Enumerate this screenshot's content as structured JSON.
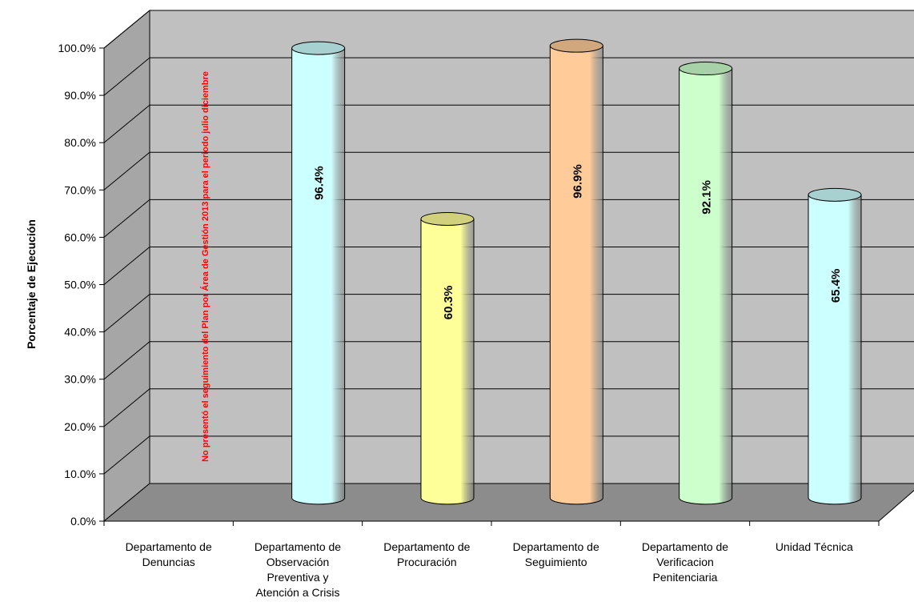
{
  "chart_data": {
    "type": "bar",
    "style": "3d-cylinder",
    "title": "",
    "xlabel": "",
    "ylabel": "Porcentaje de Ejecución",
    "ylim": [
      0,
      100
    ],
    "yticks": [
      "0.0%",
      "10.0%",
      "20.0%",
      "30.0%",
      "40.0%",
      "50.0%",
      "60.0%",
      "70.0%",
      "80.0%",
      "90.0%",
      "100.0%"
    ],
    "grid": true,
    "categories": [
      [
        "Departamento de",
        "Denuncias"
      ],
      [
        "Departamento de",
        "Observación",
        "Preventiva y",
        "Atención a Crisis"
      ],
      [
        "Departamento de",
        "Procuración"
      ],
      [
        "Departamento de",
        "Seguimiento"
      ],
      [
        "Departamento de",
        "Verificacion",
        "Penitenciaria"
      ],
      [
        "Unidad Técnica"
      ]
    ],
    "values": [
      null,
      96.4,
      60.3,
      96.9,
      92.1,
      65.4
    ],
    "value_labels": [
      "",
      "96.4%",
      "60.3%",
      "96.9%",
      "92.1%",
      "65.4%"
    ],
    "bar_colors": [
      "#ccffff",
      "#ccffff",
      "#ffff99",
      "#ffcc99",
      "#ccffcc",
      "#ccffff"
    ],
    "annotation": "No presentó el seguimiento del Plan por Área de Gestión 2013 para el  periodo julio diciembre",
    "annotation_color": "#ff0000",
    "colors": {
      "back_wall": "#c0c0c0",
      "side_wall": "#a6a6a6",
      "floor": "#8c8c8c",
      "gridline": "#000000"
    }
  }
}
